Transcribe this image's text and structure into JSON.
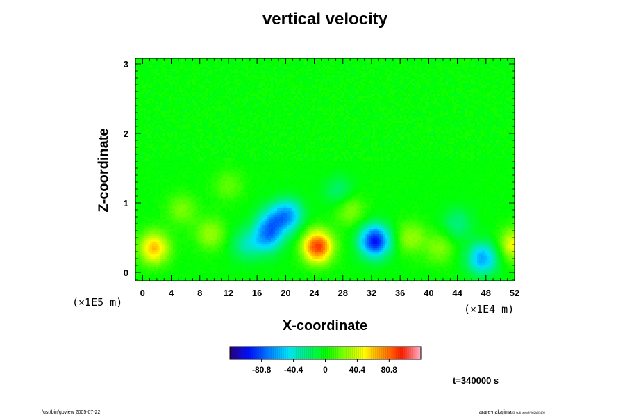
{
  "chart_data": {
    "type": "heatmap",
    "title": "vertical velocity",
    "xlabel": "X-coordinate",
    "ylabel": "Z-coordinate",
    "x_unit": "(×1E4 m)",
    "y_unit": "(×1E5 m)",
    "xlim": [
      -1,
      52
    ],
    "ylim": [
      -0.12,
      3.08
    ],
    "x_ticks": [
      0,
      4,
      8,
      12,
      16,
      20,
      24,
      28,
      32,
      36,
      40,
      44,
      48,
      52
    ],
    "y_ticks": [
      0,
      1,
      2,
      3
    ],
    "colorbar": {
      "min": -121,
      "max": 121,
      "tick_values": [
        -80.8,
        -40.4,
        0,
        40.4,
        80.8
      ],
      "tick_labels": [
        "-80.8",
        "-40.4",
        "0",
        "40.4",
        "80.8"
      ]
    },
    "features": [
      {
        "x": 1.6,
        "z": 0.35,
        "value": 62
      },
      {
        "x": 24.5,
        "z": 0.37,
        "value": 92
      },
      {
        "x": 32.5,
        "z": 0.45,
        "value": -98
      },
      {
        "x": 47.5,
        "z": 0.2,
        "value": -62
      },
      {
        "x": 52,
        "z": 0.4,
        "value": 48
      },
      {
        "x": 17.5,
        "z": 0.5,
        "value": -52
      },
      {
        "x": 20.3,
        "z": 0.82,
        "value": -60
      },
      {
        "x": 18.0,
        "z": 0.72,
        "value": -42
      },
      {
        "x": 14.5,
        "z": 0.4,
        "value": -30
      },
      {
        "x": 9.5,
        "z": 0.55,
        "value": 28
      },
      {
        "x": 5.5,
        "z": 0.9,
        "value": 22
      },
      {
        "x": 29.0,
        "z": 0.9,
        "value": 26
      },
      {
        "x": 37.5,
        "z": 0.5,
        "value": 28
      },
      {
        "x": 41.5,
        "z": 0.35,
        "value": 24
      },
      {
        "x": 44.0,
        "z": 0.7,
        "value": -24
      },
      {
        "x": 27.5,
        "z": 1.15,
        "value": -22
      },
      {
        "x": 12.0,
        "z": 1.25,
        "value": 18
      }
    ]
  },
  "time_label": "t=340000 s",
  "footer": {
    "left": "/usr/bin/gpview 2005-07-22",
    "right": "arare-nakajima",
    "right_small": "03_ts-6_atm@Yet2jc03400"
  }
}
